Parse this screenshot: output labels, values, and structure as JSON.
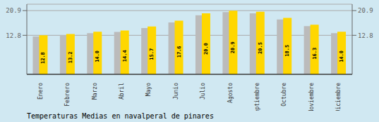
{
  "chart_data": {
    "type": "bar",
    "title": "Temperaturas Medias en navalperal de pinares",
    "categories": [
      "Enero",
      "Febrero",
      "Marzo",
      "Abril",
      "Mayo",
      "Junio",
      "Julio",
      "Agosto",
      "Septiembre",
      "Octubre",
      "Noviembre",
      "Diciembre"
    ],
    "series": [
      {
        "color": "#BBBBBB",
        "values": [
          12.4,
          12.8,
          13.5,
          13.9,
          15.2,
          17.0,
          19.4,
          20.4,
          20.0,
          18.0,
          15.8,
          13.5
        ]
      },
      {
        "color": "#FFD700",
        "values": [
          12.8,
          13.2,
          14.0,
          14.4,
          15.7,
          17.6,
          20.0,
          20.9,
          20.5,
          18.5,
          16.3,
          14.0
        ],
        "data_labels": true,
        "value_labels": [
          "12.8",
          "13.2",
          "14.0",
          "14.4",
          "15.7",
          "17.6",
          "20.0",
          "20.9",
          "20.5",
          "18.5",
          "16.3",
          "14.0"
        ]
      }
    ],
    "ylim": [
      0,
      23.0
    ],
    "yticks": [
      12.8,
      20.9
    ],
    "y2lim": [
      0,
      23.0
    ],
    "y2ticks": [
      12.8,
      20.9
    ],
    "grid": true
  }
}
